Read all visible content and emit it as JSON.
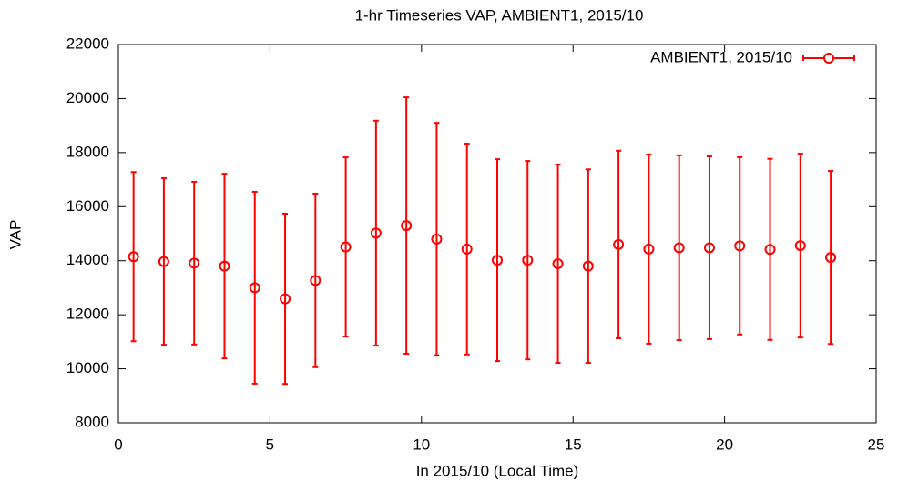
{
  "chart_data": {
    "type": "errorbar",
    "title": "1-hr Timeseries VAP, AMBIENT1, 2015/10",
    "x_label": "In 2015/10 (Local Time)",
    "y_label": "VAP",
    "xlim": [
      0,
      25
    ],
    "xticks": [
      0,
      5,
      10,
      15,
      20,
      25
    ],
    "ylim": [
      8000,
      22000
    ],
    "yticks": [
      8000,
      10000,
      12000,
      14000,
      16000,
      18000,
      20000,
      22000
    ],
    "grid": false,
    "legend": "top-right",
    "x": [
      0.5,
      1.5,
      2.5,
      3.5,
      4.5,
      5.5,
      6.5,
      7.5,
      8.5,
      9.5,
      10.5,
      11.5,
      12.5,
      13.5,
      14.5,
      15.5,
      16.5,
      17.5,
      18.5,
      19.5,
      20.5,
      21.5,
      22.5,
      23.5
    ],
    "series": [
      {
        "name": "AMBIENT1, 2015/10",
        "color": "#ff0000",
        "values": [
          14150,
          13970,
          13910,
          13800,
          13000,
          12590,
          13270,
          14510,
          15020,
          15300,
          14800,
          14430,
          14020,
          14020,
          13890,
          13800,
          14600,
          14430,
          14480,
          14480,
          14550,
          14420,
          14560,
          14120
        ],
        "errors": [
          3130,
          3080,
          3010,
          3415,
          3550,
          3150,
          3210,
          3315,
          4160,
          4745,
          4300,
          3900,
          3735,
          3670,
          3670,
          3580,
          3470,
          3500,
          3420,
          3380,
          3280,
          3350,
          3400,
          3200
        ]
      }
    ]
  }
}
